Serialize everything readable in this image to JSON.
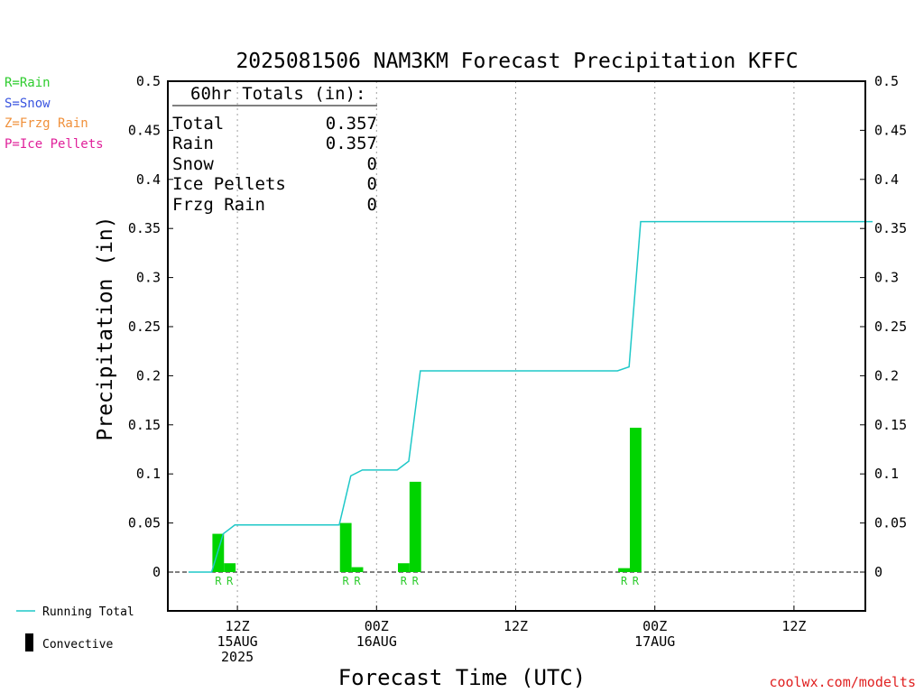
{
  "chart_data": {
    "type": "bar",
    "title": "2025081506 NAM3KM Forecast Precipitation KFFC",
    "xlabel": "Forecast Time (UTC)",
    "ylabel": "Precipitation (in)",
    "ylim": [
      -0.04,
      0.5
    ],
    "yticks": [
      0,
      0.05,
      0.1,
      0.15,
      0.2,
      0.25,
      0.3,
      0.35,
      0.4,
      0.45,
      0.5
    ],
    "ytick_labels": [
      "0",
      "0.05",
      "0.1",
      "0.15",
      "0.2",
      "0.25",
      "0.3",
      "0.35",
      "0.4",
      "0.45",
      "0.5"
    ],
    "xlim_hours": [
      0,
      60
    ],
    "xticks": [
      {
        "hour": 6,
        "labels": [
          "12Z",
          "15AUG",
          "2025"
        ]
      },
      {
        "hour": 18,
        "labels": [
          "00Z",
          "16AUG"
        ]
      },
      {
        "hour": 30,
        "labels": [
          "12Z"
        ]
      },
      {
        "hour": 42,
        "labels": [
          "00Z",
          "17AUG"
        ]
      },
      {
        "hour": 54,
        "labels": [
          "12Z"
        ]
      }
    ],
    "grid": "vertical-dotted",
    "bars": [
      {
        "hour": 4,
        "value": 0.039,
        "type": "R"
      },
      {
        "hour": 5,
        "value": 0.009,
        "type": "R"
      },
      {
        "hour": 15,
        "value": 0.05,
        "type": "R"
      },
      {
        "hour": 16,
        "value": 0.005,
        "type": "R"
      },
      {
        "hour": 20,
        "value": 0.009,
        "type": "R"
      },
      {
        "hour": 21,
        "value": 0.092,
        "type": "R"
      },
      {
        "hour": 39,
        "value": 0.004,
        "type": "R"
      },
      {
        "hour": 40,
        "value": 0.147,
        "type": "R"
      }
    ],
    "running_total": [
      {
        "hour": 1,
        "value": 0.0
      },
      {
        "hour": 3,
        "value": 0.0
      },
      {
        "hour": 4,
        "value": 0.039
      },
      {
        "hour": 5,
        "value": 0.048
      },
      {
        "hour": 14,
        "value": 0.048
      },
      {
        "hour": 15,
        "value": 0.098
      },
      {
        "hour": 16,
        "value": 0.104
      },
      {
        "hour": 19,
        "value": 0.104
      },
      {
        "hour": 20,
        "value": 0.113
      },
      {
        "hour": 21,
        "value": 0.205
      },
      {
        "hour": 38,
        "value": 0.205
      },
      {
        "hour": 39,
        "value": 0.209
      },
      {
        "hour": 40,
        "value": 0.357
      },
      {
        "hour": 60,
        "value": 0.357
      }
    ]
  },
  "totals_box": {
    "header": "60hr Totals (in):",
    "rows": [
      {
        "label": "Total",
        "value": "0.357"
      },
      {
        "label": "Rain",
        "value": "0.357"
      },
      {
        "label": "Snow",
        "value": "0"
      },
      {
        "label": "Ice Pellets",
        "value": "0"
      },
      {
        "label": "Frzg Rain",
        "value": "0"
      }
    ]
  },
  "precip_type_legend": [
    {
      "text": "R=Rain",
      "color": "#2ecc2e"
    },
    {
      "text": "S=Snow",
      "color": "#3a55e0"
    },
    {
      "text": "Z=Frzg Rain",
      "color": "#f0903a"
    },
    {
      "text": "P=Ice Pellets",
      "color": "#e0209a"
    }
  ],
  "bottom_legend": {
    "running_total": "Running Total",
    "convective": "Convective"
  },
  "watermark": "coolwx.com/modelts",
  "colors": {
    "bar": "#00d400",
    "running_total": "#1ec8c8",
    "type_letter": "#2ecc2e",
    "watermark": "#e02020",
    "axes": "#000000",
    "grid": "#a0a0a0"
  }
}
